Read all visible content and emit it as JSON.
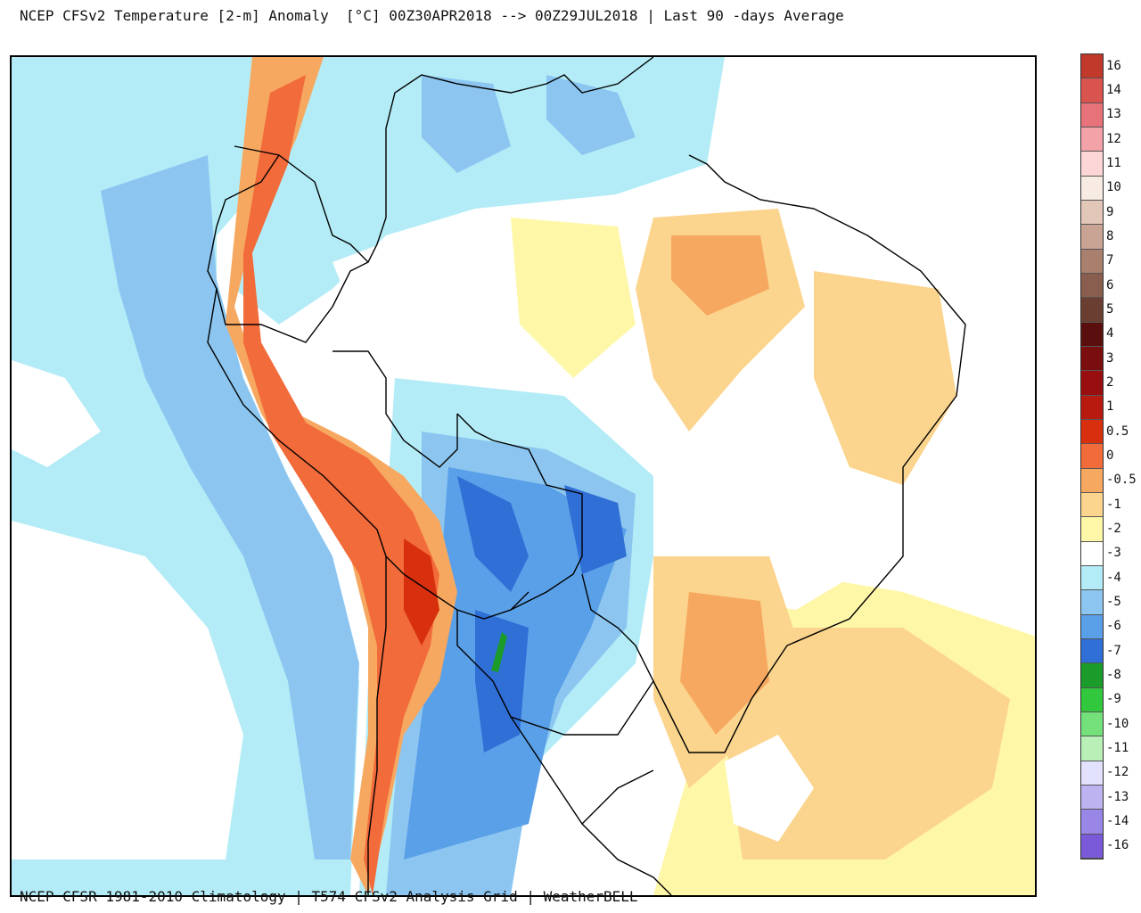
{
  "title": "NCEP CFSv2 Temperature [2-m] Anomaly  [°C] 00Z30APR2018 --> 00Z29JUL2018 | Last 90 -days Average",
  "footer": "NCEP CFSR 1981-2010 Climatology | T574 CFSv2 Analysis Grid | WeatherBELL",
  "colorbar": {
    "labels": [
      "16",
      "14",
      "13",
      "12",
      "11",
      "10",
      "9",
      "8",
      "7",
      "6",
      "5",
      "4",
      "3",
      "2",
      "1",
      "0.5",
      "0",
      "-0.5",
      "-1",
      "-2",
      "-3",
      "-4",
      "-5",
      "-6",
      "-7",
      "-8",
      "-9",
      "-10",
      "-11",
      "-12",
      "-13",
      "-14",
      "-16"
    ],
    "colors": [
      "#c0392b",
      "#d9534f",
      "#e8727a",
      "#f3a3a8",
      "#fcd6d6",
      "#f7ebe3",
      "#e2c7b8",
      "#c9a393",
      "#a9806e",
      "#8a5e4e",
      "#6a3e30",
      "#5a0f0f",
      "#7a0d0d",
      "#990f0f",
      "#b81a0f",
      "#d8300e",
      "#f26b3a",
      "#f7a860",
      "#fbd48d",
      "#fff7a8",
      "#ffffff",
      "#b3ecf7",
      "#8cc6f0",
      "#5aa0e8",
      "#2f6fd6",
      "#1a9b2a",
      "#32c83e",
      "#74e07a",
      "#b8f0b8",
      "#e2e2ff",
      "#bdb3f0",
      "#9a86e6",
      "#7a5ad8"
    ]
  },
  "chart_data": {
    "type": "heatmap",
    "title": "NCEP CFSv2 Temperature [2-m] Anomaly  [°C] 00Z30APR2018 --> 00Z29JUL2018 | Last 90 -days Average",
    "legend_placement": "right",
    "scale_levels": [
      16,
      14,
      13,
      12,
      11,
      10,
      9,
      8,
      7,
      6,
      5,
      4,
      3,
      2,
      1,
      0.5,
      0,
      -0.5,
      -1,
      -2,
      -3,
      -4,
      -5,
      -6,
      -7,
      -8,
      -9,
      -10,
      -11,
      -12,
      -13,
      -14,
      -16
    ],
    "units": "°C"
  },
  "map": {
    "ocean_pacific": "#b3ecf7",
    "atlantic_warm": "#fff7a8",
    "andes_warm": "#f26b3a",
    "andes_hot": "#d8300e",
    "cold_core": "#2f6fd6",
    "cold_mid": "#5aa0e8",
    "cold_light": "#8cc6f0",
    "warm_light": "#fbd48d",
    "green_spot": "#1a9b2a",
    "border": "#000000"
  }
}
